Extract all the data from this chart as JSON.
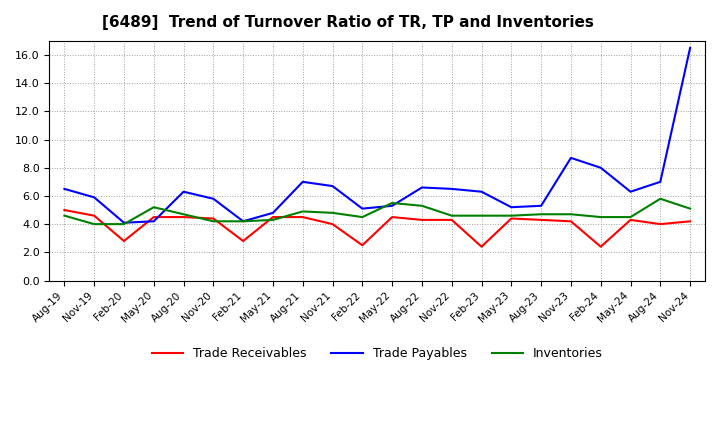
{
  "title": "[6489]  Trend of Turnover Ratio of TR, TP and Inventories",
  "x_labels": [
    "Aug-19",
    "Nov-19",
    "Feb-20",
    "May-20",
    "Aug-20",
    "Nov-20",
    "Feb-21",
    "May-21",
    "Aug-21",
    "Nov-21",
    "Feb-22",
    "May-22",
    "Aug-22",
    "Nov-22",
    "Feb-23",
    "May-23",
    "Aug-23",
    "Nov-23",
    "Feb-24",
    "May-24",
    "Aug-24",
    "Nov-24"
  ],
  "trade_receivables": [
    5.0,
    4.6,
    2.8,
    4.5,
    4.5,
    4.4,
    2.8,
    4.5,
    4.5,
    4.0,
    2.5,
    4.5,
    4.3,
    4.3,
    2.4,
    4.4,
    4.3,
    4.2,
    2.4,
    4.3,
    4.0,
    4.2
  ],
  "trade_payables": [
    6.5,
    5.9,
    4.1,
    4.2,
    6.3,
    5.8,
    4.2,
    4.8,
    7.0,
    6.7,
    5.1,
    5.3,
    6.6,
    6.5,
    6.3,
    5.2,
    5.3,
    8.7,
    8.0,
    6.3,
    7.0,
    16.5
  ],
  "inventories": [
    4.6,
    4.0,
    4.0,
    5.2,
    4.7,
    4.2,
    4.2,
    4.3,
    4.9,
    4.8,
    4.5,
    5.5,
    5.3,
    4.6,
    4.6,
    4.6,
    4.7,
    4.7,
    4.5,
    4.5,
    5.8,
    5.1
  ],
  "ylim": [
    0.0,
    17.0
  ],
  "yticks": [
    0.0,
    2.0,
    4.0,
    6.0,
    8.0,
    10.0,
    12.0,
    14.0,
    16.0
  ],
  "line_colors": {
    "trade_receivables": "#FF0000",
    "trade_payables": "#0000FF",
    "inventories": "#008000"
  },
  "legend_labels": [
    "Trade Receivables",
    "Trade Payables",
    "Inventories"
  ],
  "background_color": "#FFFFFF",
  "grid_color": "#A0A0A0"
}
